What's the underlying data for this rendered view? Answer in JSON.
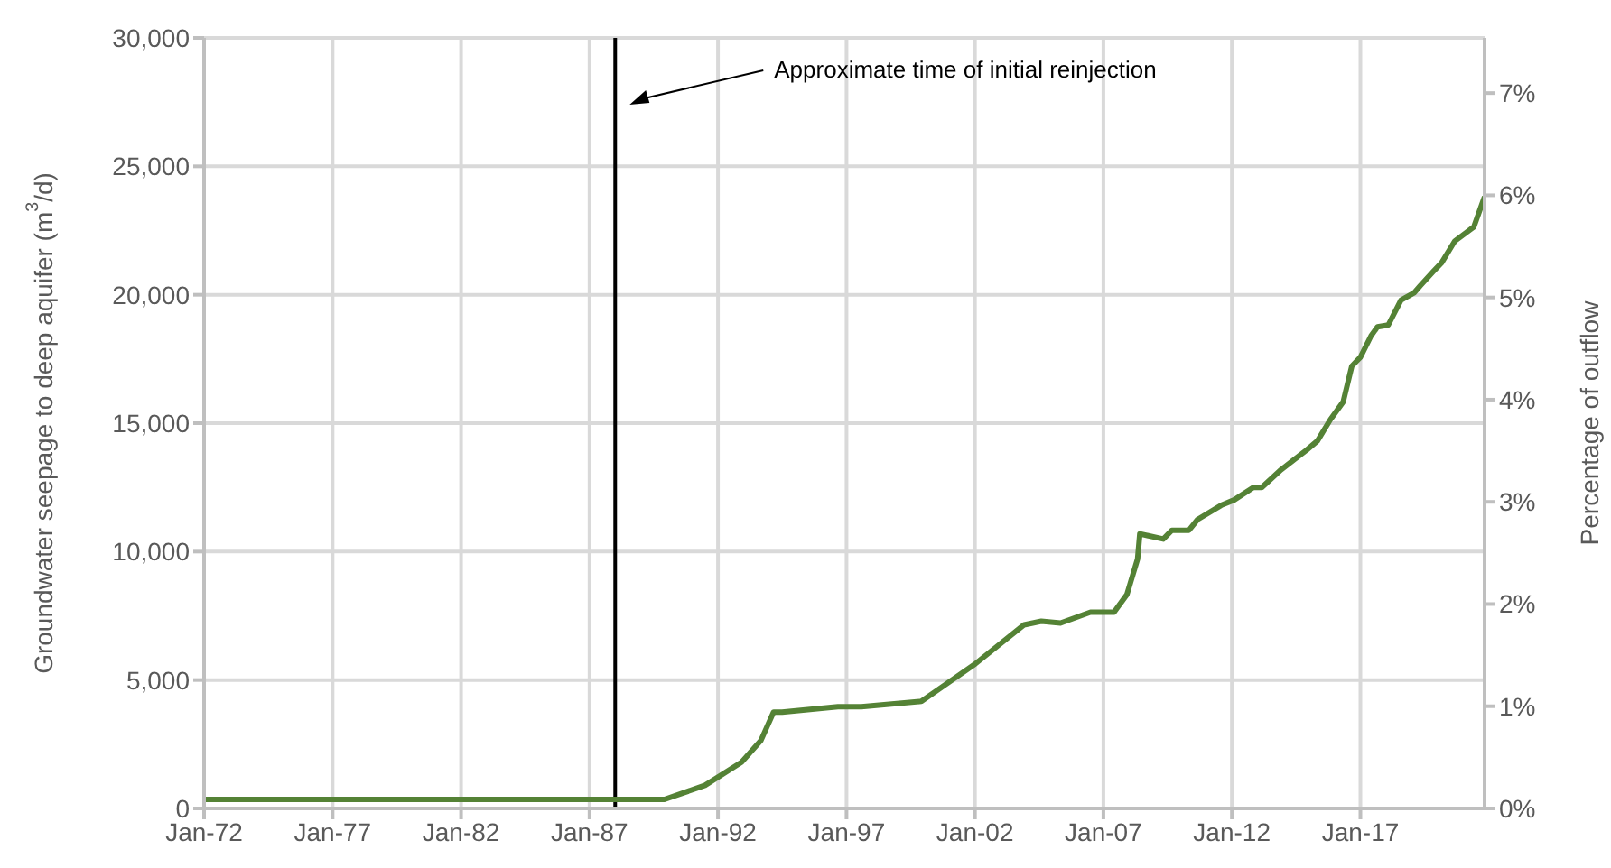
{
  "chart_data": {
    "type": "line",
    "ylabel": "Groundwater seepage to deep aquifer (m$^{3}$/d)",
    "y2label": "Percentage of outflow",
    "xlim": [
      "1972-01",
      "2021-11"
    ],
    "xticks": [
      {
        "value": "1972-01",
        "label": "Jan-72"
      },
      {
        "value": "1977-01",
        "label": "Jan-77"
      },
      {
        "value": "1982-01",
        "label": "Jan-82"
      },
      {
        "value": "1987-01",
        "label": "Jan-87"
      },
      {
        "value": "1992-01",
        "label": "Jan-92"
      },
      {
        "value": "1997-01",
        "label": "Jan-97"
      },
      {
        "value": "2002-01",
        "label": "Jan-02"
      },
      {
        "value": "2007-01",
        "label": "Jan-07"
      },
      {
        "value": "2012-01",
        "label": "Jan-12"
      },
      {
        "value": "2017-01",
        "label": "Jan-17"
      }
    ],
    "ylim": [
      0,
      30000
    ],
    "yticks": [
      {
        "value": 0,
        "label": "0"
      },
      {
        "value": 5000,
        "label": "5,000"
      },
      {
        "value": 10000,
        "label": "10,000"
      },
      {
        "value": 15000,
        "label": "15,000"
      },
      {
        "value": 20000,
        "label": "20,000"
      },
      {
        "value": 25000,
        "label": "25,000"
      },
      {
        "value": 30000,
        "label": "30,000"
      }
    ],
    "y2lim": [
      0,
      7.54
    ],
    "y2ticks": [
      {
        "value": 0,
        "label": "0%"
      },
      {
        "value": 1,
        "label": "1%"
      },
      {
        "value": 2,
        "label": "2%"
      },
      {
        "value": 3,
        "label": "3%"
      },
      {
        "value": 4,
        "label": "4%"
      },
      {
        "value": 5,
        "label": "5%"
      },
      {
        "value": 6,
        "label": "6%"
      },
      {
        "value": 7,
        "label": "7%"
      }
    ],
    "grid": true,
    "marker": "none",
    "line_style": "solid",
    "ref_lines": [
      {
        "axis": "x",
        "value": "1988-01",
        "label": "Approximate time of initial reinjection",
        "color": "#000000"
      }
    ],
    "series": [
      {
        "color": "#548235",
        "x": [
          "1972-01",
          "1980-01",
          "1989-12",
          "1991-07",
          "1992-12",
          "1993-09",
          "1994-03",
          "1994-07",
          "1996-09",
          "1997-08",
          "1999-12",
          "2002-01",
          "2003-12",
          "2004-08",
          "2005-05",
          "2006-07",
          "2007-06",
          "2007-12",
          "2008-05",
          "2008-06",
          "2009-05",
          "2009-09",
          "2010-05",
          "2010-09",
          "2011-08",
          "2012-02",
          "2012-11",
          "2013-03",
          "2013-12",
          "2014-12",
          "2015-05",
          "2015-11",
          "2016-05",
          "2016-09",
          "2017-01",
          "2017-06",
          "2017-09",
          "2018-02",
          "2018-08",
          "2019-02",
          "2019-05",
          "2019-11",
          "2020-03",
          "2020-09",
          "2021-06",
          "2021-11"
        ],
        "values": [
          350,
          350,
          350,
          900,
          1800,
          2640,
          3750,
          3750,
          3960,
          3960,
          4170,
          5620,
          7150,
          7290,
          7220,
          7640,
          7640,
          8330,
          9720,
          10690,
          10490,
          10830,
          10830,
          11250,
          11800,
          12010,
          12500,
          12500,
          13190,
          13960,
          14310,
          15140,
          15830,
          17220,
          17570,
          18400,
          18750,
          18820,
          19790,
          20070,
          20350,
          20900,
          21250,
          22080,
          22640,
          23820
        ]
      }
    ]
  }
}
